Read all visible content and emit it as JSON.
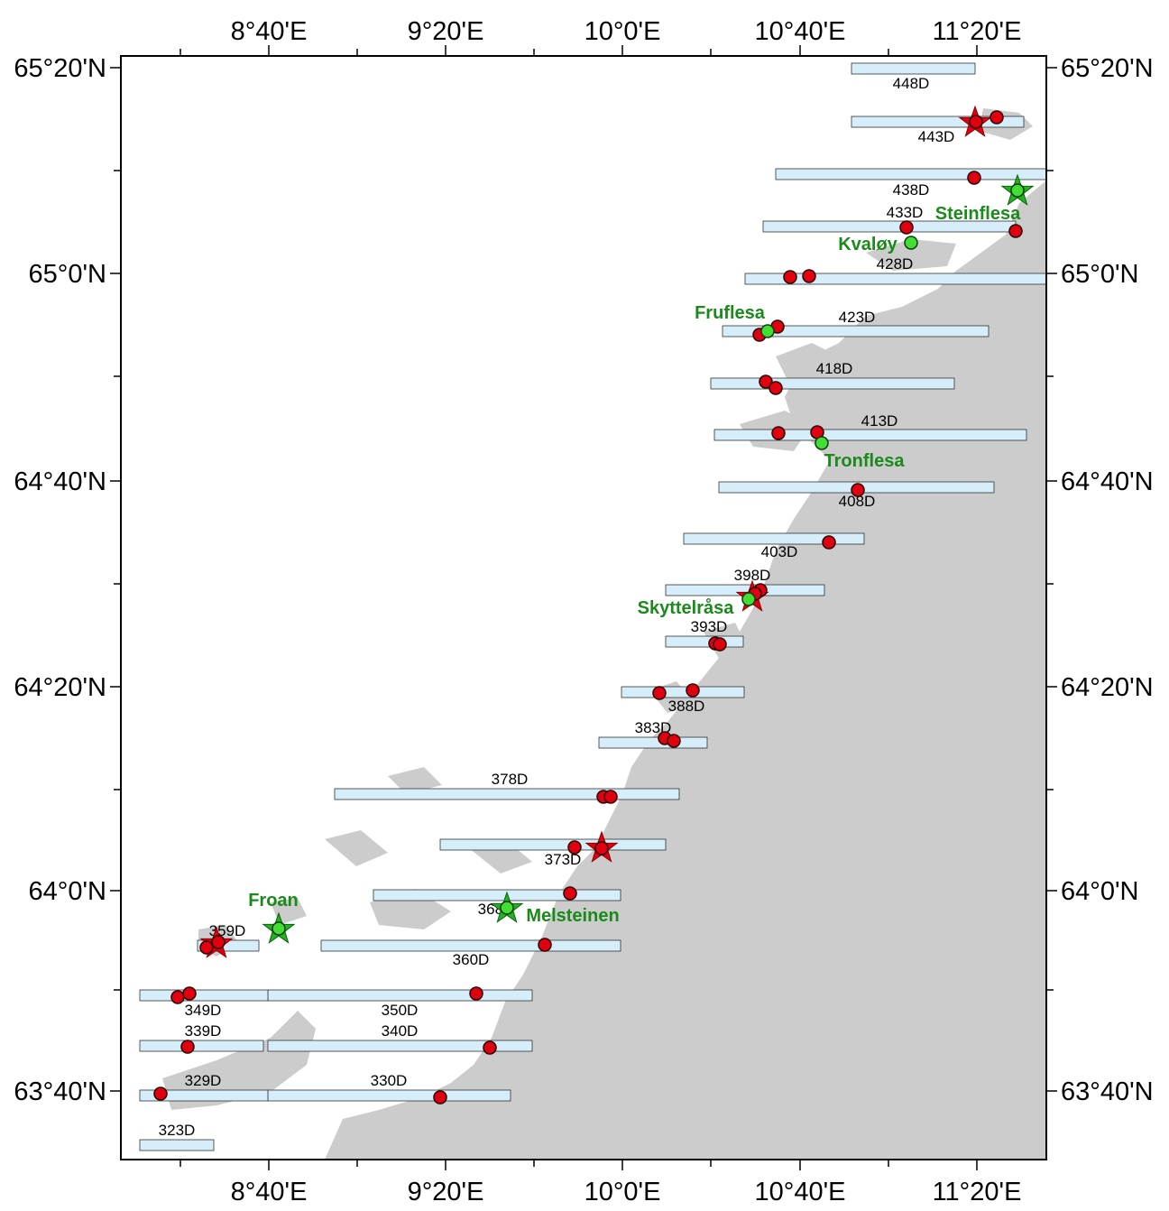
{
  "map": {
    "axes": {
      "top_ticks": [
        "8°40'E",
        "9°20'E",
        "10°0'E",
        "10°40'E",
        "11°20'E"
      ],
      "bottom_ticks": [
        "8°40'E",
        "9°20'E",
        "10°0'E",
        "10°40'E",
        "11°20'E"
      ],
      "left_ticks": [
        "65°20'N",
        "65°0'N",
        "64°40'N",
        "64°20'N",
        "64°0'N",
        "63°40'N"
      ],
      "right_ticks": [
        "65°20'N",
        "65°0'N",
        "64°40'N",
        "64°20'N",
        "64°0'N",
        "63°40'N"
      ]
    },
    "colors": {
      "land": "#cccccc",
      "sea": "#ffffff",
      "survey_line": "#d6eefa",
      "red_marker": "#e0000f",
      "green_marker": "#22b322",
      "site_label": "#1a8a1a"
    },
    "survey_lines": [
      "448D",
      "443D",
      "438D",
      "433D",
      "428D",
      "423D",
      "418D",
      "413D",
      "408D",
      "403D",
      "398D",
      "393D",
      "388D",
      "383D",
      "378D",
      "373D",
      "368D",
      "360D",
      "359D",
      "350D",
      "349D",
      "340D",
      "339D",
      "330D",
      "329D",
      "323D"
    ],
    "sites": [
      "Steinflesa",
      "Kvaløy",
      "Fruflesa",
      "Tronflesa",
      "Skyttelråsa",
      "Melsteinen",
      "Froan"
    ]
  }
}
